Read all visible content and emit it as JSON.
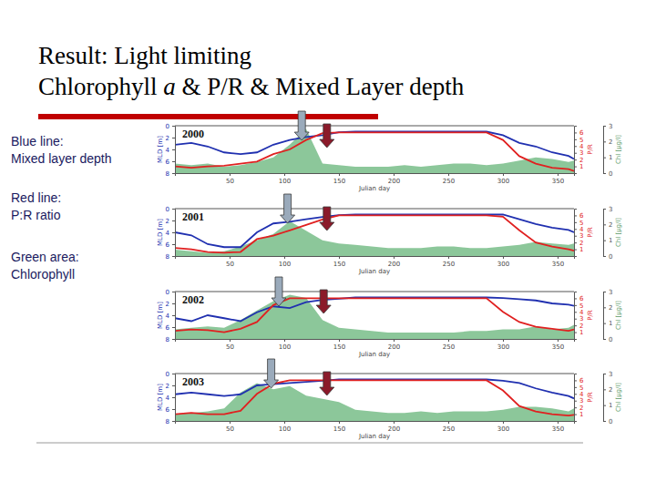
{
  "title": "Result: Light limiting",
  "subtitle_parts": [
    {
      "text": "Chlorophyll "
    },
    {
      "text": "a",
      "italic": true
    },
    {
      "text": " & P/R & Mixed Layer depth"
    }
  ],
  "key": [
    {
      "label": "Blue line:",
      "text": "Mixed layer depth"
    },
    {
      "label": "Red line:",
      "text": "P:R ratio"
    },
    {
      "label": "Green area:",
      "text": "Chlorophyll"
    }
  ],
  "chart_data": [
    {
      "type": "line",
      "title": "2000",
      "xlabel": "Julian day",
      "ylabel": "MLD [m]",
      "y2label": "P/R",
      "y3label": "Chl [μg/l]",
      "x": [
        0,
        15,
        30,
        45,
        60,
        75,
        90,
        105,
        120,
        135,
        150,
        165,
        180,
        195,
        210,
        225,
        240,
        255,
        270,
        285,
        300,
        315,
        330,
        345,
        360,
        365
      ],
      "xlim": [
        0,
        365
      ],
      "xticks": [
        50,
        100,
        150,
        200,
        250,
        300,
        350
      ],
      "ylim": [
        0,
        8
      ],
      "yticks": [
        0,
        2,
        4,
        6,
        8
      ],
      "y2lim": [
        0,
        7
      ],
      "y2ticks": [
        1,
        2,
        3,
        4,
        5,
        6
      ],
      "y3lim": [
        0,
        3
      ],
      "y3ticks": [
        0,
        1,
        2,
        3
      ],
      "arrows": [
        {
          "x": 116,
          "color": "#9aaabb"
        },
        {
          "x": 139,
          "color": "#8b1a2a"
        }
      ],
      "series": [
        {
          "type": "area",
          "axis": "y3",
          "color": "#8cc79a",
          "values": [
            0.6,
            0.5,
            0.6,
            0.4,
            0.5,
            0.7,
            1.0,
            1.8,
            2.8,
            0.6,
            0.5,
            0.4,
            0.4,
            0.4,
            0.5,
            0.4,
            0.5,
            0.6,
            0.6,
            0.5,
            0.6,
            0.8,
            1.0,
            0.9,
            0.7,
            0.8
          ]
        },
        {
          "type": "line",
          "axis": "y",
          "color": "#2030b0",
          "values": [
            3.2,
            2.9,
            3.5,
            4.5,
            4.8,
            4.5,
            3.2,
            2.4,
            1.9,
            1.6,
            1.1,
            1.0,
            1.0,
            1.0,
            1.0,
            1.0,
            1.0,
            1.0,
            1.0,
            1.0,
            1.6,
            2.9,
            3.5,
            4.5,
            5.1,
            5.6
          ]
        },
        {
          "type": "line",
          "axis": "y2",
          "color": "#e02020",
          "values": [
            1.0,
            0.8,
            1.0,
            1.1,
            1.4,
            1.7,
            2.8,
            3.5,
            4.9,
            5.9,
            6,
            6,
            6,
            6,
            6,
            6,
            6,
            6,
            6,
            6,
            4.9,
            2.5,
            1.4,
            0.8,
            0.6,
            0.3
          ]
        }
      ]
    },
    {
      "type": "line",
      "title": "2001",
      "xlabel": "Julian day",
      "ylabel": "MLD [m]",
      "y2label": "P/R",
      "y3label": "Chl [μg/l]",
      "x": [
        0,
        15,
        30,
        45,
        60,
        75,
        90,
        105,
        120,
        135,
        150,
        165,
        180,
        195,
        210,
        225,
        240,
        255,
        270,
        285,
        300,
        315,
        330,
        345,
        360,
        365
      ],
      "xlim": [
        0,
        365
      ],
      "xticks": [
        50,
        100,
        150,
        200,
        250,
        300,
        350
      ],
      "ylim": [
        0,
        8
      ],
      "yticks": [
        0,
        2,
        4,
        6,
        8
      ],
      "y2lim": [
        0,
        7
      ],
      "y2ticks": [
        1,
        2,
        3,
        4,
        5,
        6
      ],
      "y3lim": [
        0,
        3
      ],
      "y3ticks": [
        0,
        1,
        2,
        3
      ],
      "arrows": [
        {
          "x": 103,
          "color": "#9aaabb"
        },
        {
          "x": 139,
          "color": "#8b1a2a"
        }
      ],
      "series": [
        {
          "type": "area",
          "axis": "y3",
          "color": "#8cc79a",
          "values": [
            0.4,
            0.3,
            0.2,
            0.3,
            0.6,
            1.0,
            1.4,
            2.2,
            1.6,
            1.0,
            0.8,
            0.7,
            0.6,
            0.5,
            0.5,
            0.5,
            0.6,
            0.6,
            0.5,
            0.5,
            0.6,
            0.7,
            0.9,
            0.8,
            0.7,
            0.8
          ]
        },
        {
          "type": "line",
          "axis": "y",
          "color": "#2030b0",
          "values": [
            4.0,
            4.5,
            6.0,
            6.5,
            6.5,
            4.0,
            2.5,
            2.2,
            1.8,
            1.4,
            1.1,
            1.0,
            1.0,
            1.0,
            1.0,
            1.0,
            1.0,
            1.0,
            1.0,
            1.0,
            1.0,
            1.8,
            2.6,
            3.2,
            3.6,
            4.0
          ]
        },
        {
          "type": "line",
          "axis": "y2",
          "color": "#e02020",
          "values": [
            1.2,
            1.0,
            0.6,
            0.5,
            0.6,
            2.5,
            3.0,
            3.8,
            4.6,
            5.4,
            6,
            6,
            6,
            6,
            6,
            6,
            6,
            6,
            6,
            6,
            5.8,
            3.8,
            2.0,
            1.4,
            1.0,
            0.8
          ]
        }
      ]
    },
    {
      "type": "line",
      "title": "2002",
      "xlabel": "Julian day",
      "ylabel": "MLD [m]",
      "y2label": "P/R",
      "y3label": "Chl [μg/l]",
      "x": [
        0,
        15,
        30,
        45,
        60,
        75,
        90,
        105,
        120,
        135,
        150,
        165,
        180,
        195,
        210,
        225,
        240,
        255,
        270,
        285,
        300,
        315,
        330,
        345,
        360,
        365
      ],
      "xlim": [
        0,
        365
      ],
      "xticks": [
        50,
        100,
        150,
        200,
        250,
        300,
        350
      ],
      "ylim": [
        0,
        8
      ],
      "yticks": [
        0,
        2,
        4,
        6,
        8
      ],
      "y2lim": [
        0,
        7
      ],
      "y2ticks": [
        1,
        2,
        3,
        4,
        5,
        6
      ],
      "y3lim": [
        0,
        3
      ],
      "y3ticks": [
        0,
        1,
        2,
        3
      ],
      "arrows": [
        {
          "x": 95,
          "color": "#9aaabb"
        },
        {
          "x": 136,
          "color": "#8b1a2a"
        }
      ],
      "series": [
        {
          "type": "area",
          "axis": "y3",
          "color": "#8cc79a",
          "values": [
            0.6,
            0.7,
            0.8,
            0.7,
            1.2,
            1.8,
            2.4,
            2.8,
            2.6,
            1.2,
            0.7,
            0.6,
            0.5,
            0.4,
            0.4,
            0.4,
            0.4,
            0.4,
            0.5,
            0.5,
            0.6,
            0.6,
            0.8,
            0.6,
            0.7,
            0.9
          ]
        },
        {
          "type": "line",
          "axis": "y",
          "color": "#2030b0",
          "values": [
            4.5,
            5.0,
            4.0,
            4.5,
            5.0,
            3.5,
            2.5,
            2.8,
            1.8,
            1.4,
            1.2,
            1.0,
            1.0,
            1.0,
            1.0,
            1.0,
            1.0,
            1.0,
            1.0,
            1.0,
            1.1,
            1.3,
            1.5,
            2.0,
            2.2,
            2.4
          ]
        },
        {
          "type": "line",
          "axis": "y2",
          "color": "#e02020",
          "values": [
            1.2,
            1.4,
            1.3,
            1.0,
            1.5,
            2.5,
            5.0,
            6,
            6,
            6,
            6,
            6,
            6,
            6,
            6,
            6,
            6,
            6,
            6,
            6,
            4.0,
            2.5,
            1.8,
            1.5,
            1.2,
            1.4
          ]
        }
      ]
    },
    {
      "type": "line",
      "title": "2003",
      "xlabel": "Julian day",
      "ylabel": "MLD [m]",
      "y2label": "P/R",
      "y3label": "Chl [μg/l]",
      "x": [
        0,
        15,
        30,
        45,
        60,
        75,
        90,
        105,
        120,
        135,
        150,
        165,
        180,
        195,
        210,
        225,
        240,
        255,
        270,
        285,
        300,
        315,
        330,
        345,
        360,
        365
      ],
      "xlim": [
        0,
        365
      ],
      "xticks": [
        50,
        100,
        150,
        200,
        250,
        300,
        350
      ],
      "ylim": [
        0,
        8
      ],
      "yticks": [
        0,
        2,
        4,
        6,
        8
      ],
      "y2lim": [
        0,
        7
      ],
      "y2ticks": [
        1,
        2,
        3,
        4,
        5,
        6
      ],
      "y3lim": [
        0,
        3
      ],
      "y3ticks": [
        0,
        1,
        2,
        3
      ],
      "arrows": [
        {
          "x": 88,
          "color": "#9aaabb"
        },
        {
          "x": 139,
          "color": "#8b1a2a"
        }
      ],
      "series": [
        {
          "type": "area",
          "axis": "y3",
          "color": "#8cc79a",
          "values": [
            0.4,
            0.5,
            0.6,
            0.8,
            1.8,
            2.4,
            2.0,
            2.2,
            1.6,
            1.4,
            1.2,
            0.7,
            0.6,
            0.5,
            0.5,
            0.6,
            0.5,
            0.6,
            0.6,
            0.6,
            0.7,
            0.9,
            0.9,
            0.8,
            0.6,
            0.8
          ]
        },
        {
          "type": "line",
          "axis": "y",
          "color": "#2030b0",
          "values": [
            3.5,
            3.2,
            3.5,
            3.8,
            3.5,
            2.0,
            1.8,
            1.6,
            1.4,
            1.2,
            1.0,
            1.0,
            1.0,
            1.0,
            1.0,
            1.0,
            1.0,
            1.0,
            1.0,
            1.0,
            1.2,
            1.6,
            2.5,
            3.2,
            3.8,
            4.2
          ]
        },
        {
          "type": "line",
          "axis": "y2",
          "color": "#e02020",
          "values": [
            1.0,
            1.2,
            1.0,
            1.0,
            1.5,
            4.0,
            5.5,
            6,
            6,
            6,
            6,
            6,
            6,
            6,
            6,
            6,
            6,
            6,
            6,
            6,
            4.5,
            2.2,
            1.4,
            1.0,
            0.8,
            0.9
          ]
        }
      ]
    }
  ]
}
